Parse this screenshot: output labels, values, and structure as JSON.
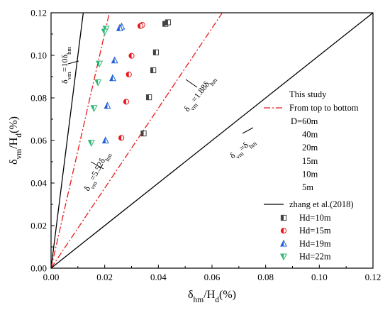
{
  "chart_data": {
    "type": "scatter",
    "xlim": [
      0,
      0.12
    ],
    "ylim": [
      0,
      0.12
    ],
    "x_ticks": [
      "0.00",
      "0.02",
      "0.04",
      "0.06",
      "0.08",
      "0.10",
      "0.12"
    ],
    "y_ticks": [
      "0.00",
      "0.02",
      "0.04",
      "0.06",
      "0.08",
      "0.10",
      "0.12"
    ],
    "xlabel": {
      "main": "δ",
      "sub1": "hm",
      "mid": "/H",
      "sub2": "d",
      "tail": "(%)"
    },
    "ylabel": {
      "main": "δ",
      "sub1": "vm",
      "mid": "/H",
      "sub2": "d",
      "tail": "(%)"
    },
    "grid": false,
    "reference_lines": [
      {
        "slope": 10,
        "style": "solid",
        "color": "#000000",
        "label": {
          "main": "δ",
          "sub1": "vm",
          "mid": "=10δ",
          "sub2": "hm"
        }
      },
      {
        "slope": 5.52,
        "style": "dashdot",
        "color": "#e8191c",
        "label": {
          "main": "δ",
          "sub1": "vm",
          "mid": "=5.52δ",
          "sub2": "hm"
        }
      },
      {
        "slope": 1.88,
        "style": "dashdot",
        "color": "#e8191c",
        "label": {
          "main": "δ",
          "sub1": "vm",
          "mid": "=1.88δ",
          "sub2": "hm"
        }
      },
      {
        "slope": 1,
        "style": "solid",
        "color": "#000000",
        "label": {
          "main": "δ",
          "sub1": "vm",
          "mid": "=δ",
          "sub2": "hm"
        }
      }
    ],
    "series": [
      {
        "name": "Hd=10m",
        "marker": "half-square",
        "color": "#444444",
        "points": [
          [
            0.0426,
            0.1148
          ],
          [
            0.0436,
            0.1155
          ],
          [
            0.0391,
            0.1014
          ],
          [
            0.0381,
            0.093
          ],
          [
            0.0365,
            0.0803
          ],
          [
            0.0345,
            0.0633
          ]
        ]
      },
      {
        "name": "Hd=15m",
        "marker": "half-circle",
        "color": "#e8191c",
        "points": [
          [
            0.034,
            0.1143
          ],
          [
            0.0333,
            0.1138
          ],
          [
            0.03,
            0.0998
          ],
          [
            0.029,
            0.091
          ],
          [
            0.028,
            0.0782
          ],
          [
            0.0262,
            0.0612
          ]
        ]
      },
      {
        "name": "Hd=19m",
        "marker": "half-triangle-up",
        "color": "#1f5fd6",
        "points": [
          [
            0.0263,
            0.1135
          ],
          [
            0.0256,
            0.1128
          ],
          [
            0.0237,
            0.0976
          ],
          [
            0.023,
            0.0893
          ],
          [
            0.021,
            0.0763
          ],
          [
            0.0203,
            0.06
          ]
        ]
      },
      {
        "name": "Hd=22m",
        "marker": "half-triangle-down",
        "color": "#2bb673",
        "points": [
          [
            0.0205,
            0.1125
          ],
          [
            0.02,
            0.1111
          ],
          [
            0.018,
            0.0961
          ],
          [
            0.0175,
            0.0873
          ],
          [
            0.016,
            0.0752
          ],
          [
            0.015,
            0.0589
          ]
        ]
      }
    ],
    "legend": {
      "placement": "right",
      "this_study": "This study",
      "dashdot_label": "From top to bottom",
      "d_list": [
        "D=60m",
        "40m",
        "20m",
        "15m",
        "10m",
        "5m"
      ],
      "zhang_label": "zhang et al.(2018)"
    }
  }
}
